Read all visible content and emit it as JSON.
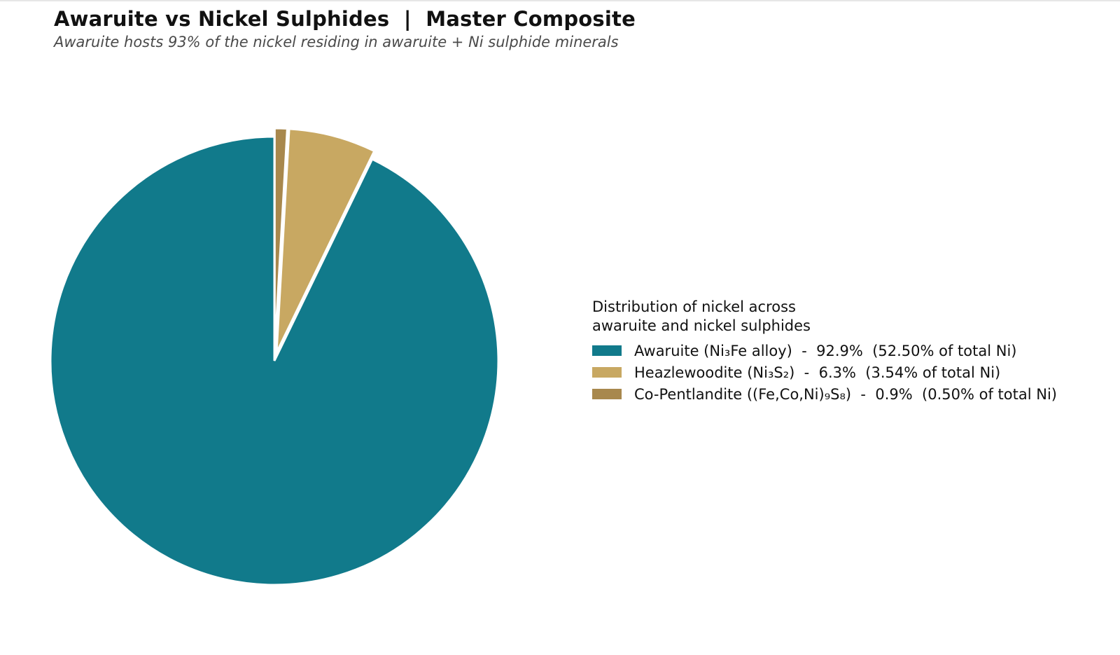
{
  "title": "Awaruite vs Nickel Sulphides  |  Master Composite",
  "subtitle": "Awaruite hosts 93% of the nickel residing in awaruite + Ni sulphide minerals",
  "chart_data": {
    "type": "pie",
    "start_angle": "12 o'clock",
    "direction": "clockwise",
    "categories": [
      "Awaruite (Ni₃Fe alloy)",
      "Heazlewoodite (Ni₃S₂)",
      "Co-Pentlandite ((Fe,Co,Ni)₉S₈)"
    ],
    "values": [
      92.9,
      6.3,
      0.9
    ],
    "exploded": [
      false,
      true,
      true
    ],
    "colors": [
      "#117A8B",
      "#C8A862",
      "#A8884D"
    ],
    "slice_edge_color": "#FFFFFF",
    "legend": {
      "placement": "right",
      "title_lines": [
        "Distribution of nickel across",
        "awaruite and nickel sulphides"
      ],
      "entries": [
        "Awaruite (Ni₃Fe alloy)  -  92.9%  (52.50% of total Ni)",
        "Heazlewoodite (Ni₃S₂)  -  6.3%  (3.54% of total Ni)",
        "Co-Pentlandite ((Fe,Co,Ni)₉S₈)  -  0.9%  (0.50% of total Ni)"
      ]
    }
  }
}
